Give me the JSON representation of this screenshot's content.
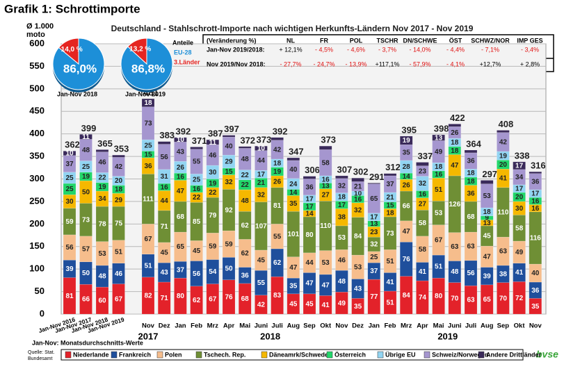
{
  "page_title": "Grafik 1: Schrottimporte",
  "chart_data": [
    {
      "type": "bar",
      "stacked": true,
      "title": "Deutschland - Stahlschrott-Importe nach wichtigen Herkunfts-Ländern Nov 2017 - Nov 2019",
      "y_label": [
        "Ø 1.000",
        "moto"
      ],
      "categories": [
        "Jan-Nov 2016",
        "Jan-Nov 2017",
        "Jan-Nov 2018",
        "Jan-Nov 2019",
        "Nov",
        "Dez",
        "Jan",
        "Feb",
        "Mrz",
        "Apr",
        "Mai",
        "Juni",
        "Juli",
        "Aug",
        "Sep",
        "Okt",
        "Nov",
        "Dez",
        "Jan",
        "Feb",
        "Mrz",
        "Apr",
        "Mai",
        "Juni",
        "Juli",
        "Aug",
        "Sep",
        "Okt",
        "Nov"
      ],
      "years": [
        "2017",
        "2018",
        "2019"
      ],
      "ylim": [
        0,
        600
      ],
      "yticks": [
        0,
        50,
        100,
        150,
        200,
        250,
        300,
        350,
        400,
        450,
        500,
        550,
        600
      ],
      "grid": true,
      "series": [
        {
          "name": "Niederlande",
          "color": "#e3222a",
          "values": [
            81,
            66,
            60,
            67,
            82,
            71,
            80,
            62,
            67,
            76,
            68,
            42,
            83,
            45,
            45,
            41,
            49,
            35,
            77,
            51,
            84,
            74,
            80,
            70,
            63,
            65,
            70,
            72,
            35
          ]
        },
        {
          "name": "Frankreich",
          "color": "#1f4f9c",
          "values": [
            39,
            50,
            48,
            46,
            51,
            43,
            37,
            56,
            54,
            50,
            36,
            55,
            62,
            35,
            47,
            47,
            48,
            43,
            37,
            41,
            76,
            41,
            51,
            48,
            56,
            39,
            38,
            41,
            36
          ]
        },
        {
          "name": "Polen",
          "color": "#f6bd8c",
          "values": [
            56,
            57,
            53,
            51,
            67,
            45,
            65,
            45,
            59,
            59,
            62,
            45,
            55,
            47,
            44,
            53,
            46,
            53,
            25,
            51,
            47,
            58,
            67,
            63,
            63,
            47,
            63,
            49,
            40
          ]
        },
        {
          "name": "Tschech. Rep.",
          "color": "#6f8f35",
          "values": [
            59,
            73,
            78,
            75,
            111,
            71,
            68,
            85,
            79,
            92,
            62,
            107,
            81,
            101,
            80,
            110,
            53,
            84,
            32,
            73,
            66,
            58,
            53,
            126,
            68,
            45,
            110,
            58,
            116
          ]
        },
        {
          "name": "Däneamrk/Schweden",
          "color": "#f5b800",
          "values": [
            30,
            50,
            34,
            29,
            36,
            44,
            47,
            22,
            22,
            32,
            48,
            32,
            26,
            35,
            14,
            27,
            38,
            32,
            23,
            18,
            26,
            27,
            51,
            47,
            36,
            13,
            41,
            30,
            16
          ]
        },
        {
          "name": "Österreich",
          "color": "#22d66a",
          "values": [
            25,
            19,
            19,
            18,
            15,
            16,
            16,
            16,
            19,
            15,
            22,
            21,
            19,
            14,
            17,
            13,
            17,
            16,
            13,
            15,
            14,
            16,
            16,
            18,
            18,
            9,
            20,
            20,
            16
          ]
        },
        {
          "name": "Übrige EU",
          "color": "#92d4f2",
          "values": [
            25,
            25,
            22,
            20,
            25,
            31,
            26,
            25,
            30,
            29,
            22,
            17,
            18,
            24,
            17,
            16,
            18,
            10,
            17,
            21,
            28,
            32,
            18,
            18,
            18,
            18,
            19,
            17,
            17
          ]
        },
        {
          "name": "Schweiz/Norwegen",
          "color": "#a596cf",
          "values": [
            37,
            48,
            46,
            42,
            73,
            56,
            43,
            55,
            46,
            40,
            48,
            44,
            42,
            40,
            36,
            58,
            32,
            21,
            65,
            37,
            35,
            23,
            49,
            26,
            36,
            53,
            42,
            34,
            36
          ]
        },
        {
          "name": "Andere Drittländer",
          "color": "#3a2a5a",
          "values": [
            10,
            11,
            5,
            5,
            18,
            6,
            10,
            5,
            11,
            4,
            4,
            10,
            6,
            6,
            6,
            8,
            6,
            8,
            2,
            5,
            19,
            8,
            13,
            6,
            6,
            8,
            5,
            17,
            4
          ]
        }
      ],
      "totals": [
        362,
        399,
        365,
        353,
        481,
        383,
        392,
        371,
        387,
        397,
        372,
        373,
        392,
        347,
        306,
        373,
        307,
        302,
        291,
        312,
        395,
        337,
        398,
        422,
        364,
        297,
        408,
        338,
        316
      ],
      "note": "Jan-Nov: Monatsdurchschnitts-Werte",
      "source": [
        "Quelle: Stat.",
        "Bundesamt"
      ],
      "brand": "bvse"
    },
    {
      "type": "pie",
      "title": "Jan-Nov 2018",
      "legend_title": "Anteile",
      "categories": [
        "EU-28",
        "3.Länder"
      ],
      "values": [
        86.0,
        14.0
      ],
      "value_labels": [
        "86,0%",
        "14,0 %"
      ],
      "colors": [
        "#1d8fd8",
        "#e52521"
      ]
    },
    {
      "type": "pie",
      "title": "Jan-Nov 2019",
      "values": [
        86.8,
        13.2
      ],
      "value_labels": [
        "86,8%",
        "13,2 %"
      ],
      "colors": [
        "#1d8fd8",
        "#e52521"
      ]
    }
  ],
  "table": {
    "header": [
      "(Veränderung %)",
      "NL",
      "FR",
      "POL",
      "TSCHR",
      "DN/SCHWE",
      "ÖST",
      "SCHWZ/NOR",
      "IMP GES"
    ],
    "rows": [
      [
        "Jan-Nov 2019/2018:",
        "+ 12,1%",
        "- 4,5%",
        "- 4,6%",
        "- 3,7%",
        "- 14,0%",
        "- 4,4%",
        "- 7,1%",
        "- 3,4%"
      ],
      [
        "Nov 2019/Nov 2018:",
        "- 27,7%",
        "- 24,7%",
        "- 13,9%",
        "+117,1%",
        "- 57,9%",
        "- 4,1%",
        "+12,7%",
        "+ 2,8%"
      ]
    ]
  }
}
